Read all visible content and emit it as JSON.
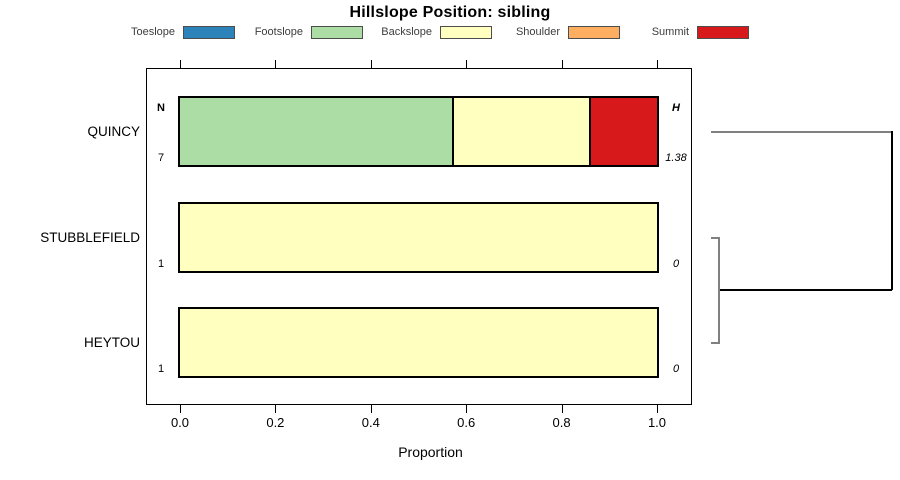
{
  "title": "Hillslope Position: sibling",
  "legend": {
    "items": [
      {
        "label": "Toeslope",
        "color": "#2b83ba"
      },
      {
        "label": "Footslope",
        "color": "#abdda4"
      },
      {
        "label": "Backslope",
        "color": "#ffffbf"
      },
      {
        "label": "Shoulder",
        "color": "#fdae61"
      },
      {
        "label": "Summit",
        "color": "#d7191c"
      }
    ]
  },
  "chart_data": {
    "type": "bar",
    "subtype": "horizontal-stacked-proportion",
    "title": "Hillslope Position: sibling",
    "xlabel": "Proportion",
    "xlim": [
      0,
      1
    ],
    "xticks": [
      {
        "label": "0.0",
        "value": 0.0
      },
      {
        "label": "0.2",
        "value": 0.2
      },
      {
        "label": "0.4",
        "value": 0.4
      },
      {
        "label": "0.6",
        "value": 0.6
      },
      {
        "label": "0.8",
        "value": 0.8
      },
      {
        "label": "1.0",
        "value": 1.0
      }
    ],
    "categories": [
      "Toeslope",
      "Footslope",
      "Backslope",
      "Shoulder",
      "Summit"
    ],
    "colors": {
      "Toeslope": "#2b83ba",
      "Footslope": "#abdda4",
      "Backslope": "#ffffbf",
      "Shoulder": "#fdae61",
      "Summit": "#d7191c"
    },
    "left_column_header": "N",
    "right_column_header": "H",
    "rows": [
      {
        "label": "QUINCY",
        "n": "7",
        "h": "1.38",
        "segments": [
          {
            "category": "Footslope",
            "value": 0.571
          },
          {
            "category": "Backslope",
            "value": 0.286
          },
          {
            "category": "Summit",
            "value": 0.143
          }
        ]
      },
      {
        "label": "STUBBLEFIELD",
        "n": "1",
        "h": "0",
        "segments": [
          {
            "category": "Backslope",
            "value": 1.0
          }
        ]
      },
      {
        "label": "HEYTOU",
        "n": "1",
        "h": "0",
        "segments": [
          {
            "category": "Backslope",
            "value": 1.0
          }
        ]
      }
    ],
    "dendrogram": {
      "leaf_order": [
        "QUINCY",
        "STUBBLEFIELD",
        "HEYTOU"
      ],
      "merges": [
        [
          "STUBBLEFIELD",
          "HEYTOU"
        ],
        [
          "QUINCY",
          "STUBBLEFIELD+HEYTOU"
        ]
      ]
    }
  }
}
